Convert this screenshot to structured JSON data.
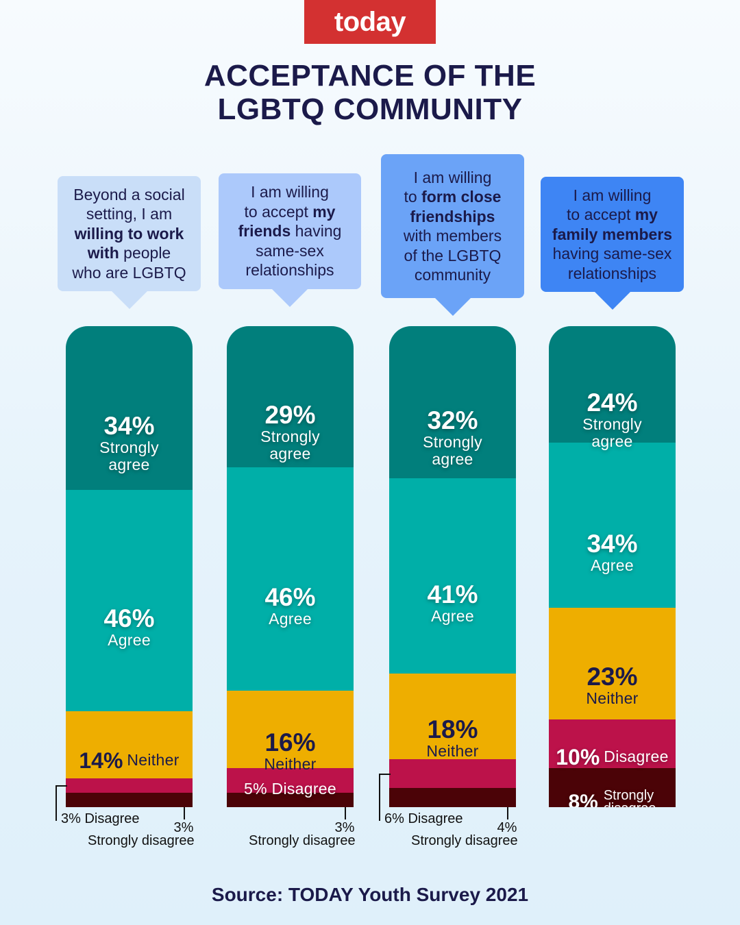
{
  "brand": "today",
  "title_lines": [
    "ACCEPTANCE OF THE",
    "LGBTQ COMMUNITY"
  ],
  "source": "Source: TODAY Youth Survey 2021",
  "colors": {
    "strongly_agree": "#017f7c",
    "agree": "#00afa8",
    "neither": "#eeae00",
    "disagree": "#bc124a",
    "strongly_disagree": "#4b0307",
    "brand": "#d33131",
    "bubbles": [
      "#c9def8",
      "#acc9fb",
      "#6ba3f7",
      "#3e85f4"
    ]
  },
  "statements": [
    {
      "lines": [
        [
          {
            "t": "Beyond a social",
            "b": false
          }
        ],
        [
          {
            "t": "setting, I am",
            "b": false
          }
        ],
        [
          {
            "t": "willing to work",
            "b": true
          }
        ],
        [
          {
            "t": "with",
            "b": true
          },
          {
            "t": " people",
            "b": false
          }
        ],
        [
          {
            "t": "who are LGBTQ",
            "b": false
          }
        ]
      ]
    },
    {
      "lines": [
        [
          {
            "t": "I am willing",
            "b": false
          }
        ],
        [
          {
            "t": "to accept ",
            "b": false
          },
          {
            "t": "my",
            "b": true
          }
        ],
        [
          {
            "t": "friends",
            "b": true
          },
          {
            "t": " having",
            "b": false
          }
        ],
        [
          {
            "t": "same-sex",
            "b": false
          }
        ],
        [
          {
            "t": "relationships",
            "b": false
          }
        ]
      ]
    },
    {
      "lines": [
        [
          {
            "t": "I am willing",
            "b": false
          }
        ],
        [
          {
            "t": "to ",
            "b": false
          },
          {
            "t": "form close",
            "b": true
          }
        ],
        [
          {
            "t": "friendships",
            "b": true
          }
        ],
        [
          {
            "t": "with members",
            "b": false
          }
        ],
        [
          {
            "t": "of the LGBTQ",
            "b": false
          }
        ],
        [
          {
            "t": "community",
            "b": false
          }
        ]
      ]
    },
    {
      "lines": [
        [
          {
            "t": "I am willing",
            "b": false
          }
        ],
        [
          {
            "t": "to accept ",
            "b": false
          },
          {
            "t": "my",
            "b": true
          }
        ],
        [
          {
            "t": "family members",
            "b": true
          }
        ],
        [
          {
            "t": "having same-sex",
            "b": false
          }
        ],
        [
          {
            "t": "relationships",
            "b": false
          }
        ]
      ]
    }
  ],
  "chart_data": {
    "type": "bar",
    "stacked": true,
    "normalized_percent": true,
    "categories": [
      "Beyond a social setting, I am willing to work with people who are LGBTQ",
      "I am willing to accept my friends having same-sex relationships",
      "I am willing to form close friendships with members of the LGBTQ community",
      "I am willing to accept my family members having same-sex relationships"
    ],
    "series": [
      {
        "name": "Strongly agree",
        "values": [
          34,
          29,
          32,
          24
        ],
        "labels": [
          "34%",
          "29%",
          "32%",
          "24%"
        ]
      },
      {
        "name": "Agree",
        "values": [
          46,
          46,
          41,
          34
        ],
        "labels": [
          "46%",
          "46%",
          "41%",
          "34%"
        ]
      },
      {
        "name": "Neither",
        "values": [
          14,
          16,
          18,
          23
        ],
        "labels": [
          "14%",
          "16%",
          "18%",
          "23%"
        ]
      },
      {
        "name": "Disagree",
        "values": [
          3,
          5,
          6,
          10
        ],
        "labels": [
          "3%",
          "5%",
          "6%",
          "10%"
        ]
      },
      {
        "name": "Strongly disagree",
        "values": [
          3,
          3,
          4,
          8
        ],
        "labels": [
          "3%",
          "3%",
          "4%",
          "8%"
        ]
      }
    ],
    "segment_text": {
      "strongly_agree": [
        "Strongly",
        "agree"
      ],
      "agree": "Agree",
      "neither": "Neither",
      "disagree": "Disagree",
      "strongly_disagree": "Strongly disagree",
      "strongly_disagree_lines": [
        "Strongly",
        "disagree"
      ]
    },
    "callouts": {
      "disagree": [
        "3% Disagree",
        "5% Disagree",
        "6% Disagree",
        "10%"
      ],
      "strongly_disagree": [
        "3%",
        "3%",
        "4%",
        "8%"
      ]
    }
  }
}
